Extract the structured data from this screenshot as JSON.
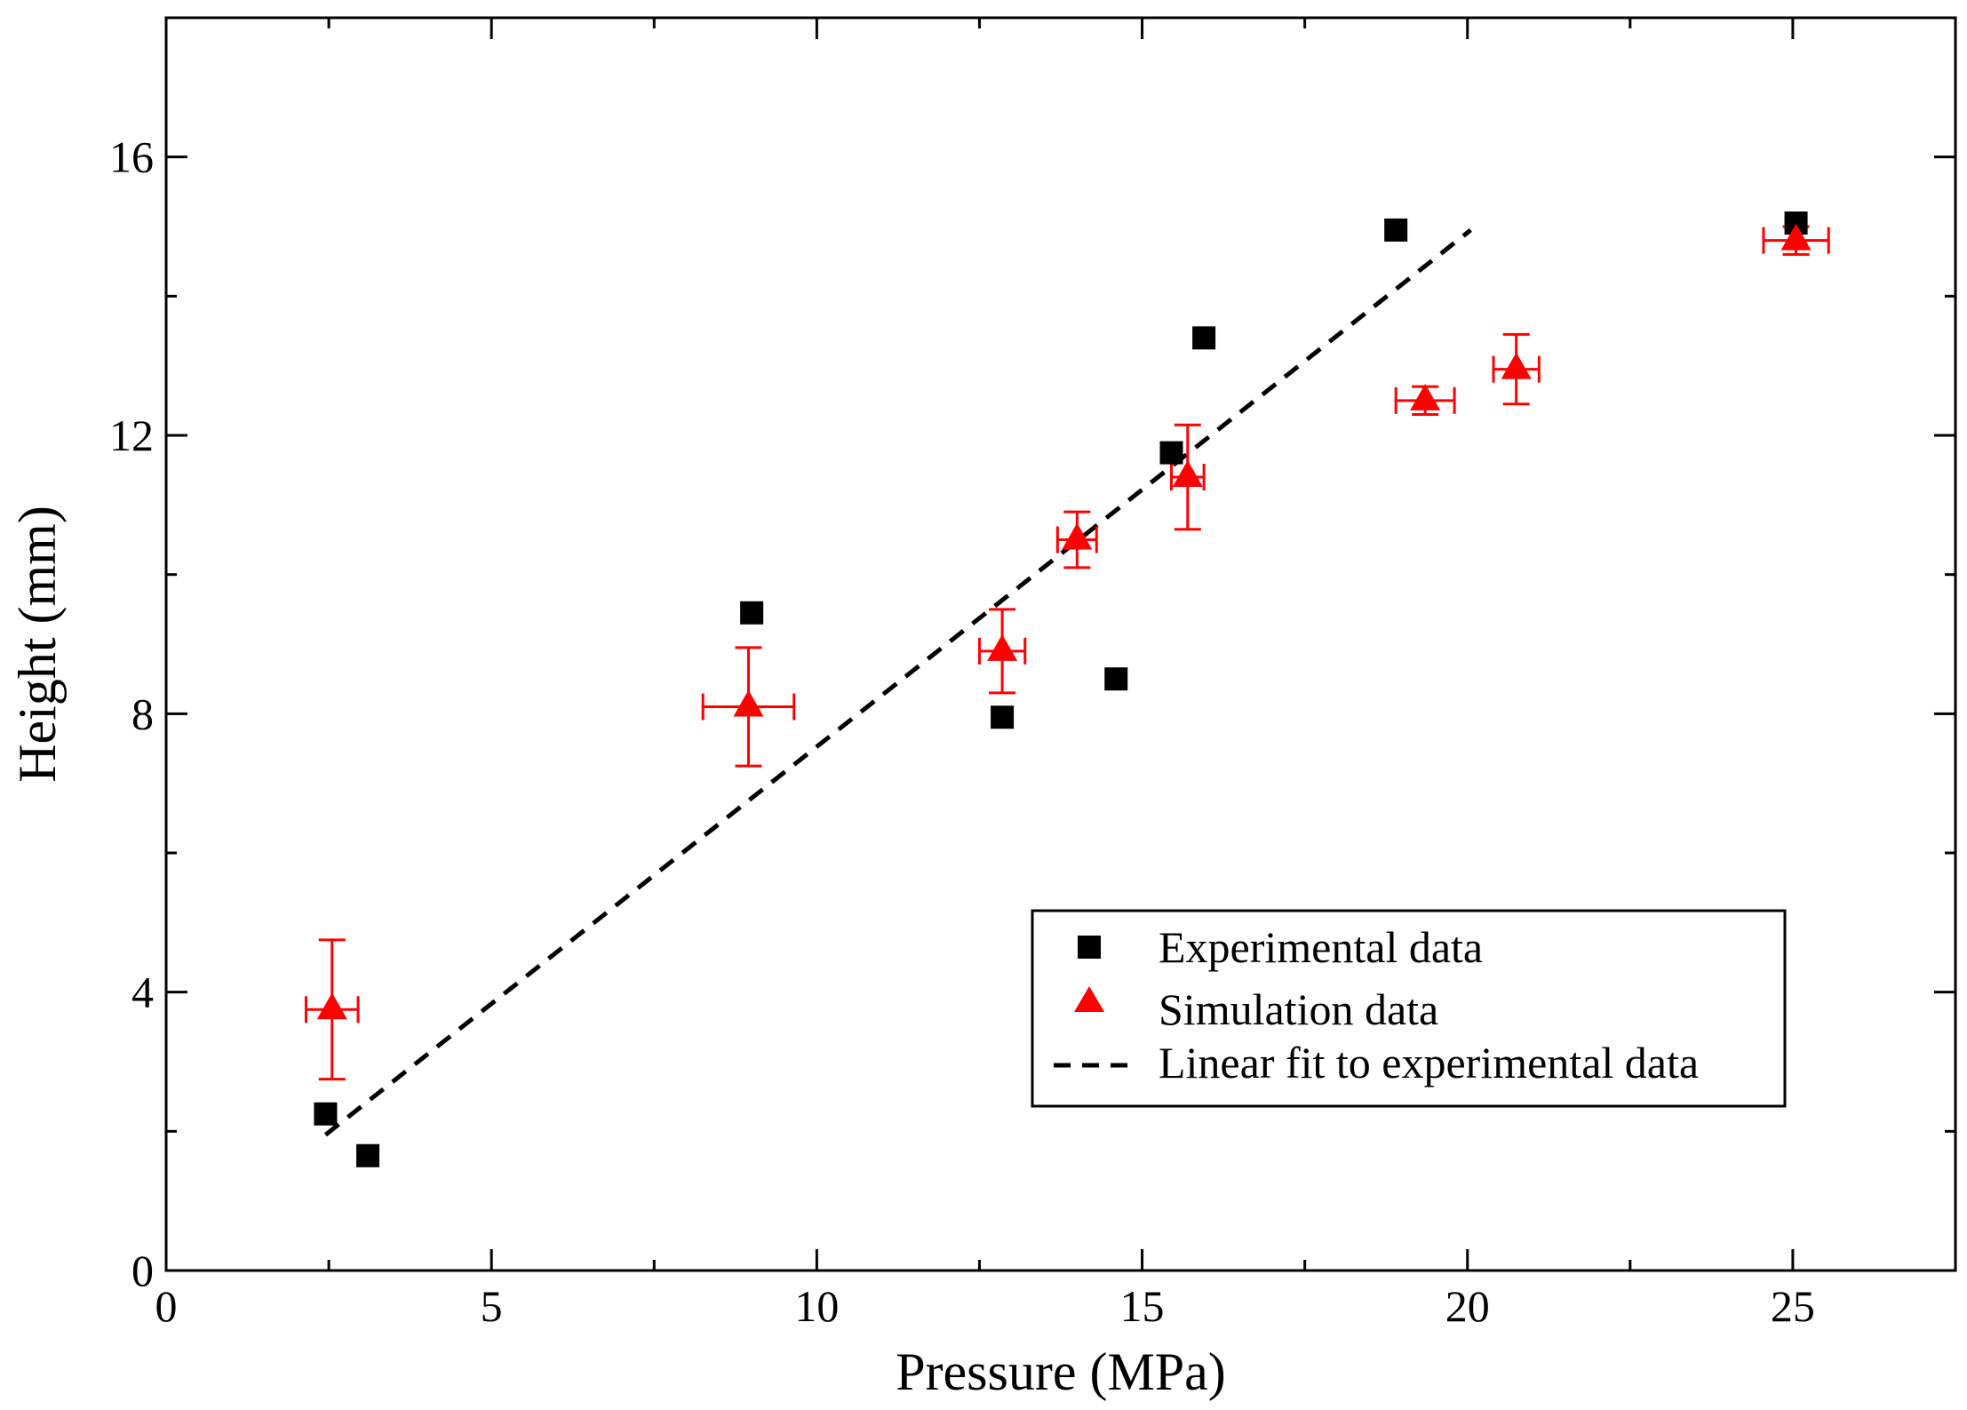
{
  "chart_data": {
    "type": "scatter",
    "title": "",
    "xlabel": "Pressure (MPa)",
    "ylabel": "Height (mm)",
    "xlim": [
      0,
      27.5
    ],
    "ylim": [
      0,
      18
    ],
    "x_major_ticks": [
      0,
      5,
      10,
      15,
      20,
      25
    ],
    "x_minor_ticks": [
      2.5,
      7.5,
      12.5,
      17.5,
      22.5
    ],
    "y_major_ticks": [
      0,
      4,
      8,
      12,
      16
    ],
    "y_minor_ticks": [
      2,
      6,
      10,
      14
    ],
    "grid": false,
    "legend_position": "bottom-right",
    "colors": {
      "experimental": "#000000",
      "simulation": "#ff0000",
      "fit": "#000000"
    },
    "series": [
      {
        "name": "Experimental data",
        "marker": "square",
        "points": [
          {
            "x": 2.45,
            "y": 2.25
          },
          {
            "x": 3.1,
            "y": 1.65
          },
          {
            "x": 9.0,
            "y": 9.45
          },
          {
            "x": 12.85,
            "y": 7.95
          },
          {
            "x": 14.6,
            "y": 8.5
          },
          {
            "x": 15.45,
            "y": 11.75
          },
          {
            "x": 15.95,
            "y": 13.4
          },
          {
            "x": 18.9,
            "y": 14.95
          },
          {
            "x": 25.05,
            "y": 15.05
          }
        ]
      },
      {
        "name": "Simulation data",
        "marker": "triangle",
        "points": [
          {
            "x": 2.55,
            "y": 3.75,
            "xerr": 0.4,
            "yerr": 1.0
          },
          {
            "x": 8.95,
            "y": 8.1,
            "xerr": 0.7,
            "yerr": 0.85
          },
          {
            "x": 12.85,
            "y": 8.9,
            "xerr": 0.35,
            "yerr": 0.6
          },
          {
            "x": 14.0,
            "y": 10.5,
            "xerr": 0.3,
            "yerr": 0.4
          },
          {
            "x": 15.7,
            "y": 11.4,
            "xerr": 0.25,
            "yerr": 0.75
          },
          {
            "x": 19.35,
            "y": 12.5,
            "xerr": 0.45,
            "yerr": 0.2
          },
          {
            "x": 20.75,
            "y": 12.95,
            "xerr": 0.35,
            "yerr": 0.5
          },
          {
            "x": 25.05,
            "y": 14.8,
            "xerr": 0.5,
            "yerr": 0.2
          }
        ]
      },
      {
        "name": "Linear fit to experimental data",
        "style": "dashed-line",
        "points": [
          {
            "x": 2.45,
            "y": 1.95
          },
          {
            "x": 20.05,
            "y": 14.95
          }
        ]
      }
    ]
  }
}
